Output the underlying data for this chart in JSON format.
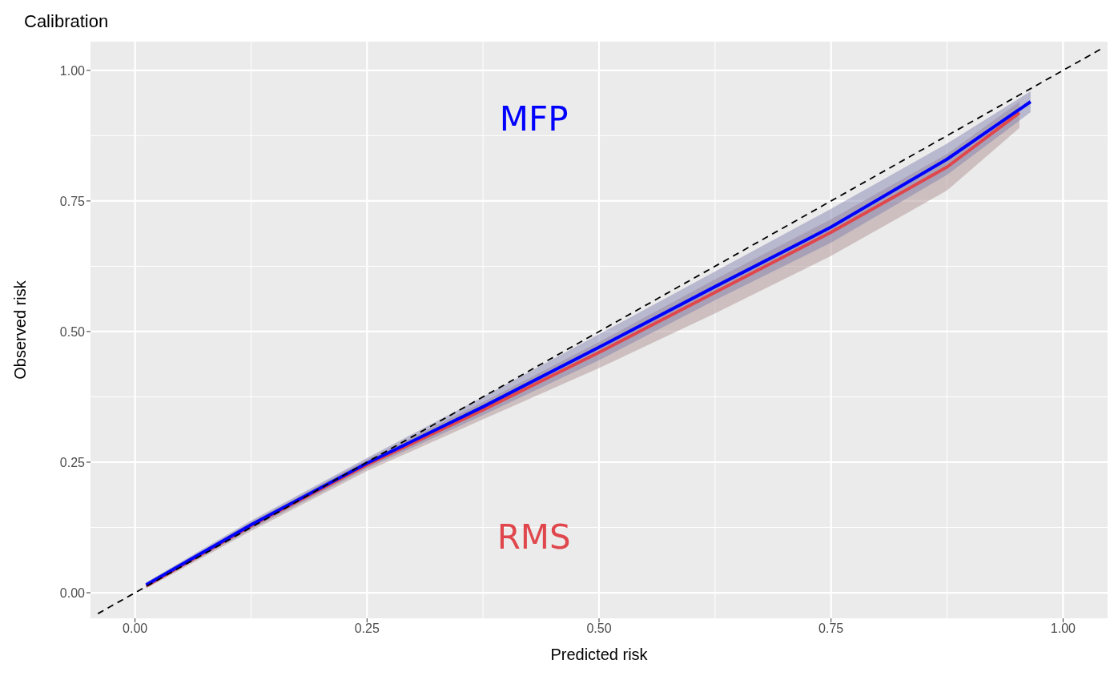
{
  "chart_data": {
    "type": "line",
    "title": "Calibration",
    "xlabel": "Predicted risk",
    "ylabel": "Observed risk",
    "xlim": [
      -0.048,
      1.048
    ],
    "ylim": [
      -0.049,
      1.055
    ],
    "xticks": [
      {
        "value": 0,
        "label": "0.00"
      },
      {
        "value": 0.25,
        "label": "0.25"
      },
      {
        "value": 0.5,
        "label": "0.50"
      },
      {
        "value": 0.75,
        "label": "0.75"
      },
      {
        "value": 1,
        "label": "1.00"
      }
    ],
    "yticks": [
      {
        "value": 0,
        "label": "0.00"
      },
      {
        "value": 0.25,
        "label": "0.25"
      },
      {
        "value": 0.5,
        "label": "0.50"
      },
      {
        "value": 0.75,
        "label": "0.75"
      },
      {
        "value": 1,
        "label": "1.00"
      }
    ],
    "grid": true,
    "line_style": "solid",
    "series": [
      {
        "name": "RMS",
        "color": "#e0474c",
        "x": [
          0.012,
          0.125,
          0.25,
          0.375,
          0.5,
          0.625,
          0.75,
          0.875,
          0.953
        ],
        "values": [
          0.013,
          0.128,
          0.245,
          0.35,
          0.46,
          0.575,
          0.69,
          0.815,
          0.919
        ],
        "lower": [
          0.008,
          0.118,
          0.233,
          0.332,
          0.43,
          0.535,
          0.645,
          0.77,
          0.89
        ],
        "upper": [
          0.018,
          0.135,
          0.255,
          0.365,
          0.48,
          0.6,
          0.715,
          0.84,
          0.94
        ]
      },
      {
        "name": "MFP",
        "color": "#0000ff",
        "x": [
          0.012,
          0.125,
          0.25,
          0.375,
          0.5,
          0.625,
          0.75,
          0.875,
          0.965
        ],
        "values": [
          0.015,
          0.13,
          0.248,
          0.356,
          0.47,
          0.586,
          0.7,
          0.83,
          0.94
        ],
        "lower": [
          0.01,
          0.122,
          0.238,
          0.34,
          0.445,
          0.56,
          0.67,
          0.8,
          0.92
        ],
        "upper": [
          0.02,
          0.138,
          0.258,
          0.375,
          0.495,
          0.615,
          0.735,
          0.86,
          0.96
        ]
      },
      {
        "color": "#000000",
        "line_style": "dashed",
        "x": [
          -0.04,
          1.04
        ],
        "values": [
          -0.04,
          1.04
        ]
      }
    ]
  }
}
